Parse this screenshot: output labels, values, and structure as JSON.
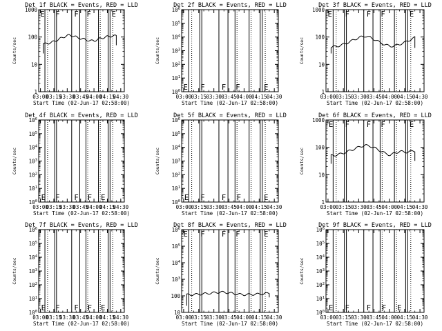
{
  "page": {
    "colors": {
      "background": "#ffffff",
      "foreground": "#000000",
      "lld": "#ff0000"
    }
  },
  "chart_data": [
    {
      "type": "line",
      "detector": "1f",
      "title": "Det 1f BLACK = Events, RED = LLD",
      "xlabel": "Start Time (02-Jun-17 02:58:00)",
      "ylabel": "Counts/sec",
      "yscale": "log",
      "ylim": [
        1,
        1000
      ],
      "ytick_labels": [
        "1",
        "10",
        "100",
        "1000"
      ],
      "xlim_minutes": [
        0,
        96
      ],
      "xtick_labels": [
        "03:00",
        "03:15",
        "03:30",
        "03:45",
        "04:00",
        "04:15",
        "04:30"
      ],
      "dotted_times": [
        "03:08",
        "03:53",
        "04:07",
        "04:21"
      ],
      "event_lines": [
        "03:05",
        "03:16",
        "03:18",
        "03:35",
        "03:44",
        "03:51",
        "04:05",
        "04:16",
        "04:18"
      ],
      "markers": [
        {
          "label": "E",
          "t": "02:59"
        },
        {
          "label": "F",
          "t": "03:16"
        },
        {
          "label": "F",
          "t": "03:37"
        },
        {
          "label": "F",
          "t": "03:51"
        },
        {
          "label": "E",
          "t": "04:19"
        }
      ],
      "marker_level": "top",
      "series": [
        {
          "name": "Events",
          "t_start": "03:03",
          "t_end": "04:25",
          "y_start": 25,
          "y_end": 50,
          "values": [
            55,
            58,
            64,
            74,
            88,
            104,
            117,
            110,
            95,
            86,
            79,
            72,
            74,
            85,
            95,
            104,
            109,
            110
          ]
        }
      ],
      "lld_series": []
    },
    {
      "type": "line",
      "detector": "2f",
      "title": "Det 2f BLACK = Events, RED = LLD",
      "xlabel": "Start Time (02-Jun-17 02:58:00)",
      "ylabel": "Counts/sec",
      "yscale": "log",
      "ylim": [
        1,
        1000000
      ],
      "ytick_labels": [
        "10^0",
        "10^1",
        "10^2",
        "10^3",
        "10^4",
        "10^5",
        "10^6"
      ],
      "xlim_minutes": [
        0,
        96
      ],
      "xtick_labels": [
        "03:00",
        "03:15",
        "03:30",
        "03:45",
        "04:00",
        "04:15",
        "04:30"
      ],
      "dotted_times": [
        "03:08",
        "03:53",
        "04:07",
        "04:21"
      ],
      "event_lines": [
        "03:05",
        "03:16",
        "03:18",
        "03:35",
        "03:44",
        "03:51",
        "04:05",
        "04:16",
        "04:18"
      ],
      "markers": [
        {
          "label": "E",
          "t": "02:59"
        },
        {
          "label": "F",
          "t": "03:16"
        },
        {
          "label": "F",
          "t": "03:37"
        },
        {
          "label": "F",
          "t": "03:51"
        },
        {
          "label": "E",
          "t": "04:19"
        }
      ],
      "marker_level": "bottom",
      "series": [],
      "lld_series": []
    },
    {
      "type": "line",
      "detector": "3f",
      "title": "Det 3f BLACK = Events, RED = LLD",
      "xlabel": "Start Time (02-Jun-17 02:58:00)",
      "ylabel": "Counts/sec",
      "yscale": "log",
      "ylim": [
        1,
        1000
      ],
      "ytick_labels": [
        "1",
        "10",
        "100",
        "1000"
      ],
      "xlim_minutes": [
        0,
        96
      ],
      "xtick_labels": [
        "03:00",
        "03:15",
        "03:30",
        "03:45",
        "04:00",
        "04:15",
        "04:30"
      ],
      "dotted_times": [
        "03:08",
        "03:53",
        "04:07",
        "04:21"
      ],
      "event_lines": [
        "03:05",
        "03:16",
        "03:18",
        "03:35",
        "03:44",
        "03:51",
        "04:05",
        "04:16",
        "04:18"
      ],
      "markers": [
        {
          "label": "E",
          "t": "02:59"
        },
        {
          "label": "F",
          "t": "03:16"
        },
        {
          "label": "F",
          "t": "03:37"
        },
        {
          "label": "F",
          "t": "03:51"
        },
        {
          "label": "E",
          "t": "04:19"
        }
      ],
      "marker_level": "top",
      "series": [
        {
          "name": "Events",
          "t_start": "03:03",
          "t_end": "04:25",
          "y_start": 25,
          "y_end": 40,
          "values": [
            42,
            45,
            50,
            58,
            70,
            85,
            100,
            108,
            95,
            78,
            62,
            52,
            46,
            48,
            55,
            64,
            78,
            95
          ]
        }
      ],
      "lld_series": []
    },
    {
      "type": "line",
      "detector": "4f",
      "title": "Det 4f BLACK = Events, RED = LLD",
      "xlabel": "Start Time (02-Jun-17 02:58:00)",
      "ylabel": "Counts/sec",
      "yscale": "log",
      "ylim": [
        1,
        1000000
      ],
      "ytick_labels": [
        "10^0",
        "10^1",
        "10^2",
        "10^3",
        "10^4",
        "10^5",
        "10^6"
      ],
      "xlim_minutes": [
        0,
        96
      ],
      "xtick_labels": [
        "03:00",
        "03:15",
        "03:30",
        "03:45",
        "04:00",
        "04:15",
        "04:30"
      ],
      "dotted_times": [
        "03:08",
        "03:53",
        "04:07",
        "04:21"
      ],
      "event_lines": [
        "03:05",
        "03:16",
        "03:18",
        "03:35",
        "03:44",
        "03:51",
        "04:05",
        "04:16",
        "04:18"
      ],
      "markers": [
        {
          "label": "E",
          "t": "03:00"
        },
        {
          "label": "F",
          "t": "03:16"
        },
        {
          "label": "F",
          "t": "03:37"
        },
        {
          "label": "F",
          "t": "03:52"
        },
        {
          "label": "E",
          "t": "04:07"
        }
      ],
      "marker_level": "bottom",
      "series": [],
      "lld_series": []
    },
    {
      "type": "line",
      "detector": "5f",
      "title": "Det 5f BLACK = Events, RED = LLD",
      "xlabel": "Start Time (02-Jun-17 02:58:00)",
      "ylabel": "Counts/sec",
      "yscale": "log",
      "ylim": [
        1,
        1000000
      ],
      "ytick_labels": [
        "10^0",
        "10^1",
        "10^2",
        "10^3",
        "10^4",
        "10^5",
        "10^6"
      ],
      "xlim_minutes": [
        0,
        96
      ],
      "xtick_labels": [
        "03:00",
        "03:15",
        "03:30",
        "03:45",
        "04:00",
        "04:15",
        "04:30"
      ],
      "dotted_times": [
        "03:08",
        "03:53",
        "04:07",
        "04:21"
      ],
      "event_lines": [
        "03:05",
        "03:16",
        "03:18",
        "03:35",
        "03:44",
        "03:51",
        "04:05",
        "04:16",
        "04:18"
      ],
      "markers": [
        {
          "label": "E",
          "t": "03:00"
        },
        {
          "label": "F",
          "t": "03:16"
        },
        {
          "label": "F",
          "t": "03:37"
        },
        {
          "label": "F",
          "t": "03:52"
        },
        {
          "label": "E",
          "t": "04:19"
        }
      ],
      "marker_level": "bottom",
      "series": [],
      "lld_series": []
    },
    {
      "type": "line",
      "detector": "6f",
      "title": "Det 6f BLACK = Events, RED = LLD",
      "xlabel": "Start Time (02-Jun-17 02:58:00)",
      "ylabel": "Counts/sec",
      "yscale": "log",
      "ylim": [
        1,
        1000
      ],
      "ytick_labels": [
        "1",
        "10",
        "100",
        "1000"
      ],
      "xlim_minutes": [
        0,
        96
      ],
      "xtick_labels": [
        "03:00",
        "03:15",
        "03:30",
        "03:45",
        "04:00",
        "04:15",
        "04:30"
      ],
      "dotted_times": [
        "03:08",
        "03:53",
        "04:07",
        "04:21"
      ],
      "event_lines": [
        "03:05",
        "03:16",
        "03:18",
        "03:35",
        "03:44",
        "03:51",
        "04:05",
        "04:16",
        "04:18"
      ],
      "markers": [
        {
          "label": "E",
          "t": "03:00"
        },
        {
          "label": "F",
          "t": "03:16"
        },
        {
          "label": "F",
          "t": "03:37"
        },
        {
          "label": "F",
          "t": "03:51"
        },
        {
          "label": "E",
          "t": "04:19"
        }
      ],
      "marker_level": "top",
      "series": [
        {
          "name": "Events",
          "t_start": "03:03",
          "t_end": "04:25",
          "y_start": 25,
          "y_end": 32,
          "values": [
            50,
            52,
            58,
            66,
            78,
            92,
            108,
            118,
            110,
            92,
            75,
            60,
            52,
            62,
            72,
            66,
            70,
            74
          ]
        }
      ],
      "lld_series": []
    },
    {
      "type": "line",
      "detector": "7f",
      "title": "Det 7f BLACK = Events, RED = LLD",
      "xlabel": "Start Time (02-Jun-17 02:58:00)",
      "ylabel": "Counts/sec",
      "yscale": "log",
      "ylim": [
        1,
        1000000
      ],
      "ytick_labels": [
        "10^0",
        "10^1",
        "10^2",
        "10^3",
        "10^4",
        "10^5",
        "10^6"
      ],
      "xlim_minutes": [
        0,
        96
      ],
      "xtick_labels": [
        "03:00",
        "03:15",
        "03:30",
        "03:45",
        "04:00",
        "04:15",
        "04:30"
      ],
      "dotted_times": [
        "03:08",
        "03:53",
        "04:07",
        "04:21"
      ],
      "event_lines": [
        "03:05",
        "03:16",
        "03:18",
        "03:35",
        "03:44",
        "03:51",
        "04:05",
        "04:16",
        "04:18"
      ],
      "markers": [
        {
          "label": "E",
          "t": "03:00"
        },
        {
          "label": "F",
          "t": "03:16"
        },
        {
          "label": "F",
          "t": "03:37"
        },
        {
          "label": "F",
          "t": "03:52"
        },
        {
          "label": "E",
          "t": "04:07"
        }
      ],
      "marker_level": "bottom",
      "series": [],
      "lld_series": []
    },
    {
      "type": "line",
      "detector": "8f",
      "title": "Det 8f BLACK = Events, RED = LLD",
      "xlabel": "Start Time (02-Jun-17 02:58:00)",
      "ylabel": "Counts/sec",
      "yscale": "log",
      "ylim": [
        10,
        1000000
      ],
      "ytick_labels": [
        "10",
        "100",
        "10^3",
        "10^4",
        "10^5",
        "10^6"
      ],
      "xlim_minutes": [
        0,
        96
      ],
      "xtick_labels": [
        "03:00",
        "03:15",
        "03:30",
        "03:45",
        "04:00",
        "04:15",
        "04:30"
      ],
      "dotted_times": [
        "03:08",
        "03:53",
        "04:07",
        "04:21"
      ],
      "event_lines": [
        "03:05",
        "03:16",
        "03:18",
        "03:35",
        "03:44",
        "03:51",
        "04:05",
        "04:16",
        "04:18"
      ],
      "markers": [
        {
          "label": "E",
          "t": "02:59"
        },
        {
          "label": "F",
          "t": "03:16"
        },
        {
          "label": "F",
          "t": "03:37"
        },
        {
          "label": "F",
          "t": "03:51"
        },
        {
          "label": "E",
          "t": "04:19"
        }
      ],
      "marker_level": "top",
      "series": [
        {
          "name": "Events",
          "t_start": "03:03",
          "t_end": "04:25",
          "y_start": 25,
          "y_end": 80,
          "values": [
            115,
            118,
            122,
            128,
            136,
            146,
            158,
            168,
            160,
            146,
            132,
            122,
            118,
            120,
            124,
            128,
            134,
            146
          ]
        }
      ],
      "lld_series": []
    },
    {
      "type": "line",
      "detector": "9f",
      "title": "Det 9f BLACK = Events, RED = LLD",
      "xlabel": "Start Time (02-Jun-17 02:58:00)",
      "ylabel": "Counts/sec",
      "yscale": "log",
      "ylim": [
        1,
        1000000
      ],
      "ytick_labels": [
        "10^0",
        "10^1",
        "10^2",
        "10^3",
        "10^4",
        "10^5",
        "10^6"
      ],
      "xlim_minutes": [
        0,
        96
      ],
      "xtick_labels": [
        "03:00",
        "03:15",
        "03:30",
        "03:45",
        "04:00",
        "04:15",
        "04:30"
      ],
      "dotted_times": [
        "03:08",
        "03:53",
        "04:07",
        "04:21"
      ],
      "event_lines": [
        "03:05",
        "03:16",
        "03:18",
        "03:35",
        "03:44",
        "03:51",
        "04:05",
        "04:16",
        "04:18"
      ],
      "markers": [
        {
          "label": "E",
          "t": "03:00"
        },
        {
          "label": "F",
          "t": "03:16"
        },
        {
          "label": "F",
          "t": "03:37"
        },
        {
          "label": "F",
          "t": "03:52"
        },
        {
          "label": "E",
          "t": "04:07"
        }
      ],
      "marker_level": "bottom",
      "series": [],
      "lld_series": []
    }
  ]
}
